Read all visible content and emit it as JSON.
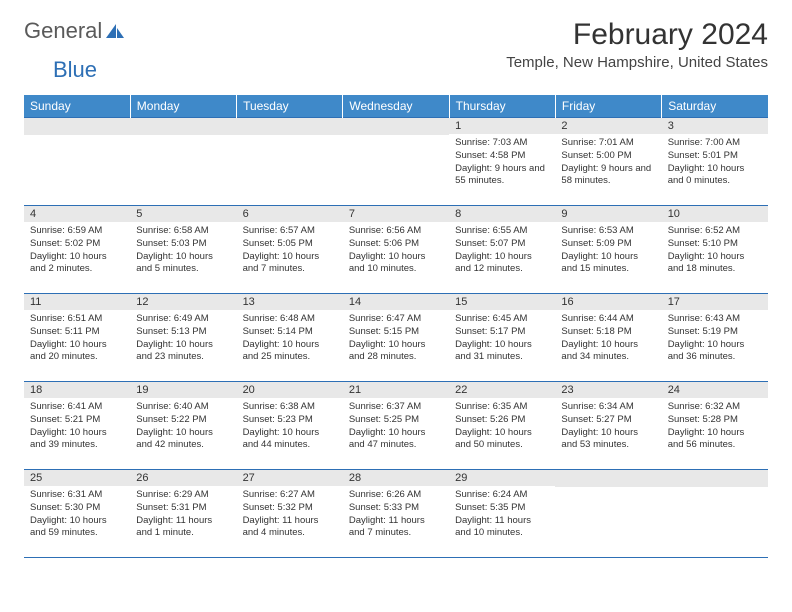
{
  "brand": {
    "part1": "General",
    "part2": "Blue",
    "text_color": "#5a5a5a",
    "blue_color": "#2d6fb5"
  },
  "title": "February 2024",
  "location": "Temple, New Hampshire, United States",
  "colors": {
    "header_bg": "#3f89c9",
    "header_text": "#ffffff",
    "daynum_bg": "#e8e8e8",
    "border": "#2d6fb5",
    "background": "#ffffff",
    "text": "#333333"
  },
  "weekdays": [
    "Sunday",
    "Monday",
    "Tuesday",
    "Wednesday",
    "Thursday",
    "Friday",
    "Saturday"
  ],
  "weeks": [
    [
      {
        "n": "",
        "lines": []
      },
      {
        "n": "",
        "lines": []
      },
      {
        "n": "",
        "lines": []
      },
      {
        "n": "",
        "lines": []
      },
      {
        "n": "1",
        "lines": [
          "Sunrise: 7:03 AM",
          "Sunset: 4:58 PM",
          "Daylight: 9 hours and 55 minutes."
        ]
      },
      {
        "n": "2",
        "lines": [
          "Sunrise: 7:01 AM",
          "Sunset: 5:00 PM",
          "Daylight: 9 hours and 58 minutes."
        ]
      },
      {
        "n": "3",
        "lines": [
          "Sunrise: 7:00 AM",
          "Sunset: 5:01 PM",
          "Daylight: 10 hours and 0 minutes."
        ]
      }
    ],
    [
      {
        "n": "4",
        "lines": [
          "Sunrise: 6:59 AM",
          "Sunset: 5:02 PM",
          "Daylight: 10 hours and 2 minutes."
        ]
      },
      {
        "n": "5",
        "lines": [
          "Sunrise: 6:58 AM",
          "Sunset: 5:03 PM",
          "Daylight: 10 hours and 5 minutes."
        ]
      },
      {
        "n": "6",
        "lines": [
          "Sunrise: 6:57 AM",
          "Sunset: 5:05 PM",
          "Daylight: 10 hours and 7 minutes."
        ]
      },
      {
        "n": "7",
        "lines": [
          "Sunrise: 6:56 AM",
          "Sunset: 5:06 PM",
          "Daylight: 10 hours and 10 minutes."
        ]
      },
      {
        "n": "8",
        "lines": [
          "Sunrise: 6:55 AM",
          "Sunset: 5:07 PM",
          "Daylight: 10 hours and 12 minutes."
        ]
      },
      {
        "n": "9",
        "lines": [
          "Sunrise: 6:53 AM",
          "Sunset: 5:09 PM",
          "Daylight: 10 hours and 15 minutes."
        ]
      },
      {
        "n": "10",
        "lines": [
          "Sunrise: 6:52 AM",
          "Sunset: 5:10 PM",
          "Daylight: 10 hours and 18 minutes."
        ]
      }
    ],
    [
      {
        "n": "11",
        "lines": [
          "Sunrise: 6:51 AM",
          "Sunset: 5:11 PM",
          "Daylight: 10 hours and 20 minutes."
        ]
      },
      {
        "n": "12",
        "lines": [
          "Sunrise: 6:49 AM",
          "Sunset: 5:13 PM",
          "Daylight: 10 hours and 23 minutes."
        ]
      },
      {
        "n": "13",
        "lines": [
          "Sunrise: 6:48 AM",
          "Sunset: 5:14 PM",
          "Daylight: 10 hours and 25 minutes."
        ]
      },
      {
        "n": "14",
        "lines": [
          "Sunrise: 6:47 AM",
          "Sunset: 5:15 PM",
          "Daylight: 10 hours and 28 minutes."
        ]
      },
      {
        "n": "15",
        "lines": [
          "Sunrise: 6:45 AM",
          "Sunset: 5:17 PM",
          "Daylight: 10 hours and 31 minutes."
        ]
      },
      {
        "n": "16",
        "lines": [
          "Sunrise: 6:44 AM",
          "Sunset: 5:18 PM",
          "Daylight: 10 hours and 34 minutes."
        ]
      },
      {
        "n": "17",
        "lines": [
          "Sunrise: 6:43 AM",
          "Sunset: 5:19 PM",
          "Daylight: 10 hours and 36 minutes."
        ]
      }
    ],
    [
      {
        "n": "18",
        "lines": [
          "Sunrise: 6:41 AM",
          "Sunset: 5:21 PM",
          "Daylight: 10 hours and 39 minutes."
        ]
      },
      {
        "n": "19",
        "lines": [
          "Sunrise: 6:40 AM",
          "Sunset: 5:22 PM",
          "Daylight: 10 hours and 42 minutes."
        ]
      },
      {
        "n": "20",
        "lines": [
          "Sunrise: 6:38 AM",
          "Sunset: 5:23 PM",
          "Daylight: 10 hours and 44 minutes."
        ]
      },
      {
        "n": "21",
        "lines": [
          "Sunrise: 6:37 AM",
          "Sunset: 5:25 PM",
          "Daylight: 10 hours and 47 minutes."
        ]
      },
      {
        "n": "22",
        "lines": [
          "Sunrise: 6:35 AM",
          "Sunset: 5:26 PM",
          "Daylight: 10 hours and 50 minutes."
        ]
      },
      {
        "n": "23",
        "lines": [
          "Sunrise: 6:34 AM",
          "Sunset: 5:27 PM",
          "Daylight: 10 hours and 53 minutes."
        ]
      },
      {
        "n": "24",
        "lines": [
          "Sunrise: 6:32 AM",
          "Sunset: 5:28 PM",
          "Daylight: 10 hours and 56 minutes."
        ]
      }
    ],
    [
      {
        "n": "25",
        "lines": [
          "Sunrise: 6:31 AM",
          "Sunset: 5:30 PM",
          "Daylight: 10 hours and 59 minutes."
        ]
      },
      {
        "n": "26",
        "lines": [
          "Sunrise: 6:29 AM",
          "Sunset: 5:31 PM",
          "Daylight: 11 hours and 1 minute."
        ]
      },
      {
        "n": "27",
        "lines": [
          "Sunrise: 6:27 AM",
          "Sunset: 5:32 PM",
          "Daylight: 11 hours and 4 minutes."
        ]
      },
      {
        "n": "28",
        "lines": [
          "Sunrise: 6:26 AM",
          "Sunset: 5:33 PM",
          "Daylight: 11 hours and 7 minutes."
        ]
      },
      {
        "n": "29",
        "lines": [
          "Sunrise: 6:24 AM",
          "Sunset: 5:35 PM",
          "Daylight: 11 hours and 10 minutes."
        ]
      },
      {
        "n": "",
        "lines": []
      },
      {
        "n": "",
        "lines": []
      }
    ]
  ]
}
